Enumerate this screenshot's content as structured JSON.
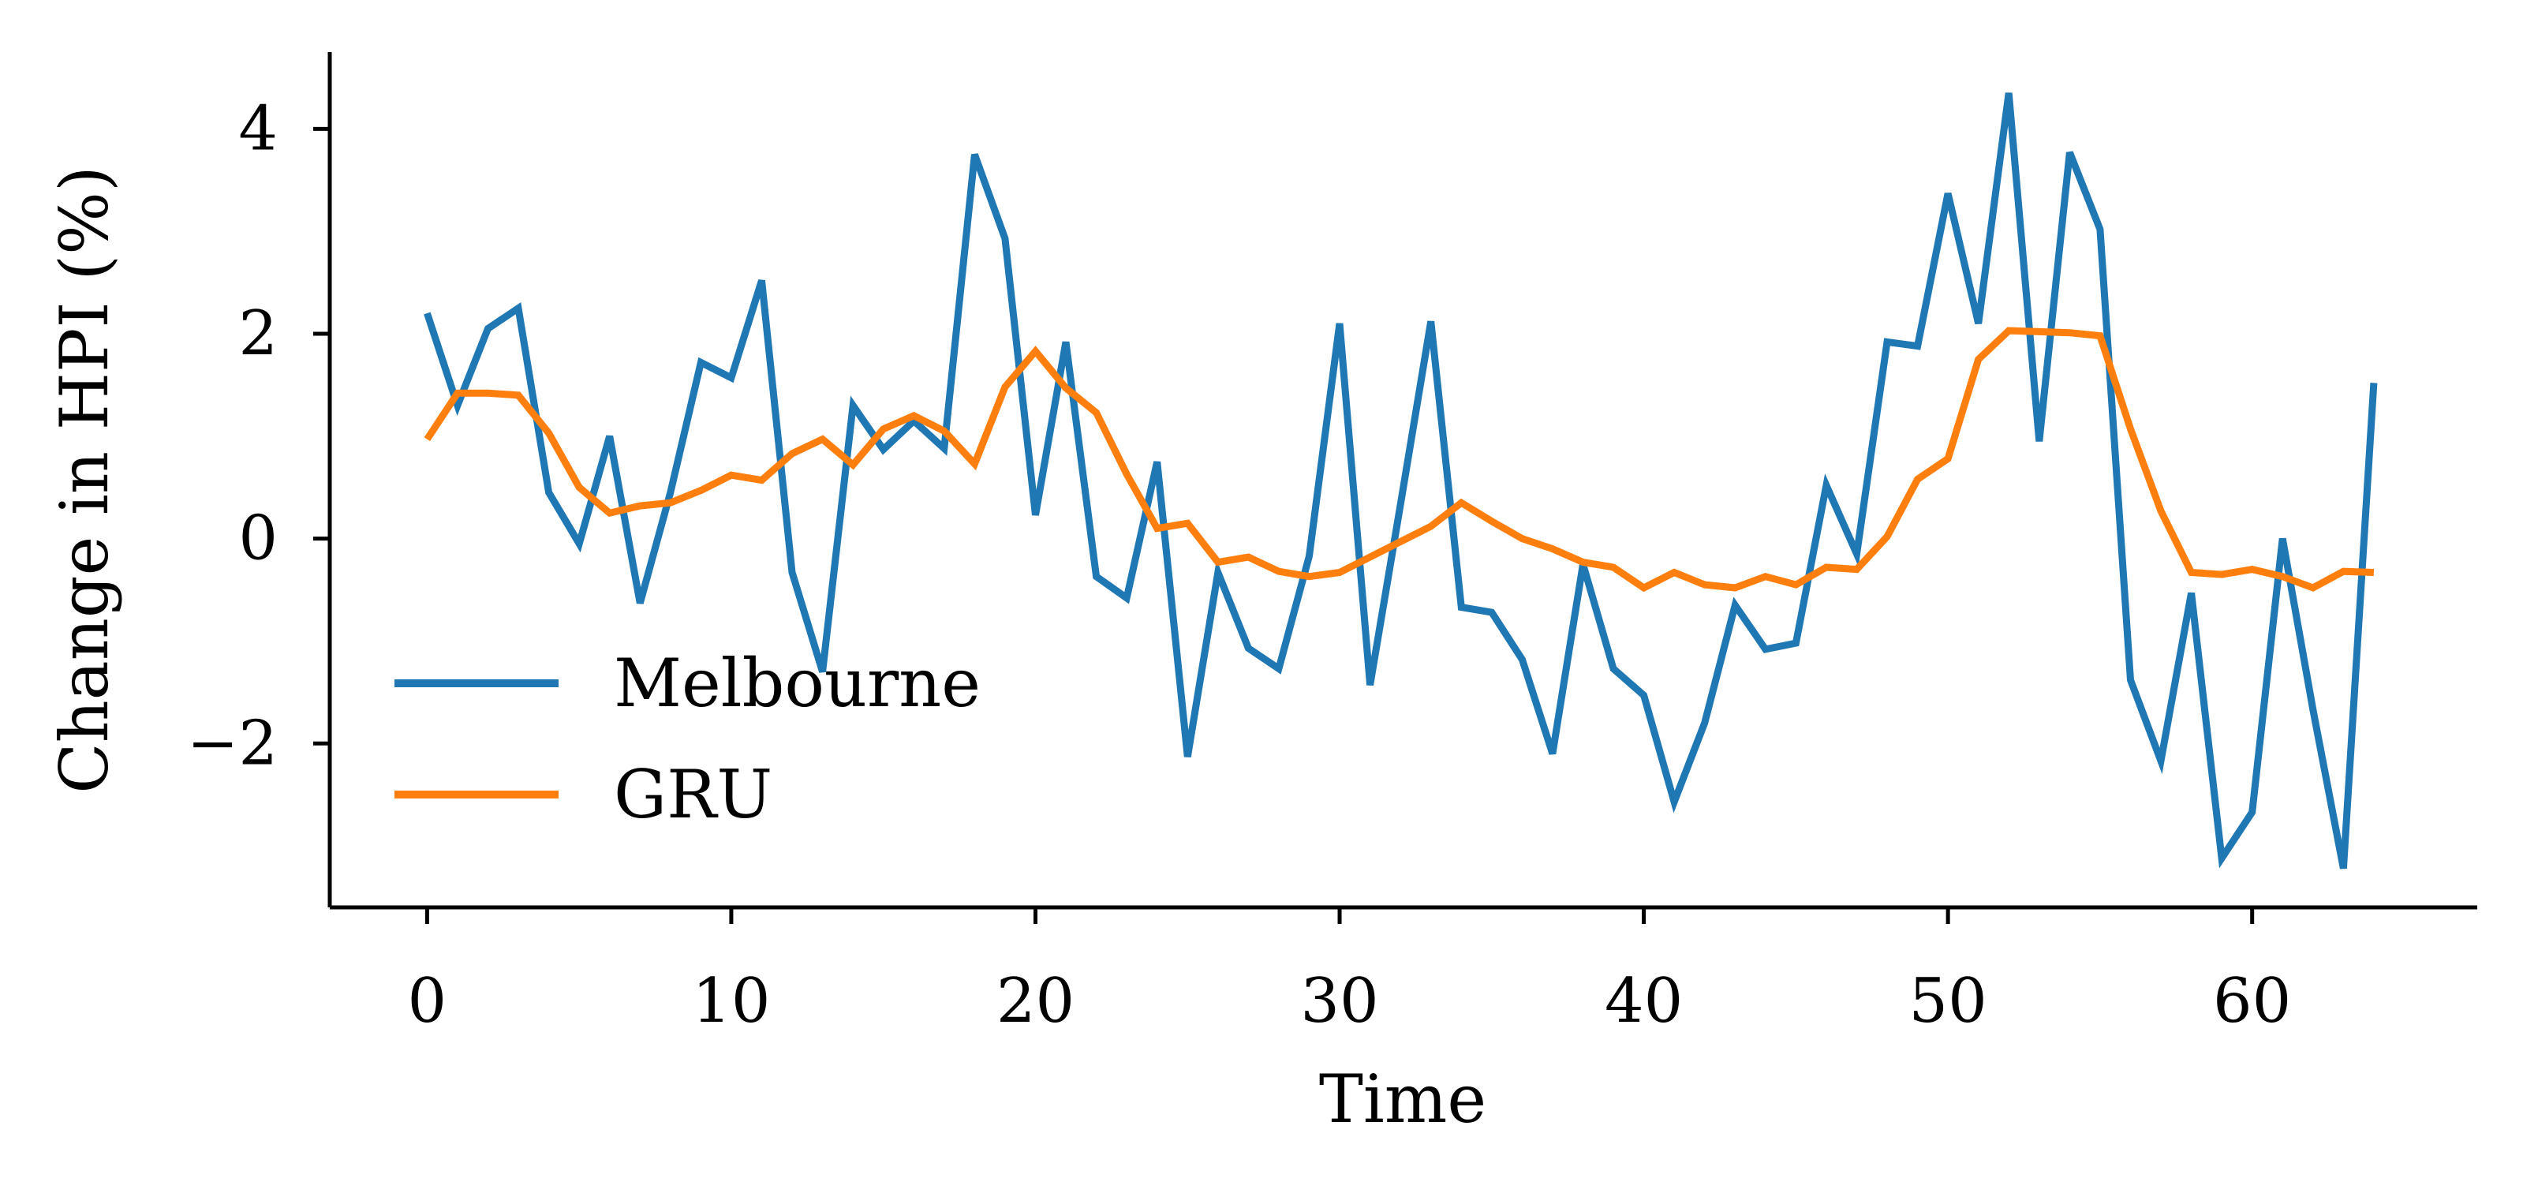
{
  "chart_data": {
    "type": "line",
    "xlabel": "Time",
    "ylabel": "Change in HPI (%)",
    "xlim": [
      -3.2,
      67.4
    ],
    "ylim": [
      -3.6,
      4.75
    ],
    "xticks": [
      0,
      10,
      20,
      30,
      40,
      50,
      60
    ],
    "yticks": [
      -2,
      0,
      2,
      4
    ],
    "grid": false,
    "legend_position": "lower-left",
    "series": [
      {
        "name": "Melbourne",
        "color": "#1f77b4",
        "x": [
          0,
          1,
          2,
          3,
          4,
          5,
          6,
          7,
          8,
          9,
          10,
          11,
          12,
          13,
          14,
          15,
          16,
          17,
          18,
          19,
          20,
          21,
          22,
          23,
          24,
          25,
          26,
          27,
          28,
          29,
          30,
          31,
          32,
          33,
          34,
          35,
          36,
          37,
          38,
          39,
          40,
          41,
          42,
          43,
          44,
          45,
          46,
          47,
          48,
          49,
          50,
          51,
          52,
          53,
          54,
          55,
          56,
          57,
          58,
          59,
          60,
          61,
          62,
          63,
          64
        ],
        "values": [
          2.2,
          1.3,
          2.05,
          2.25,
          0.45,
          -0.05,
          1.0,
          -0.63,
          0.45,
          1.72,
          1.57,
          2.52,
          -0.33,
          -1.3,
          1.3,
          0.87,
          1.15,
          0.88,
          3.75,
          2.93,
          0.23,
          1.92,
          -0.37,
          -0.58,
          0.75,
          -2.13,
          -0.33,
          -1.07,
          -1.27,
          -0.17,
          2.1,
          -1.43,
          0.33,
          2.12,
          -0.67,
          -0.72,
          -1.18,
          -2.1,
          -0.25,
          -1.27,
          -1.53,
          -2.57,
          -1.8,
          -0.65,
          -1.08,
          -1.02,
          0.52,
          -0.15,
          1.92,
          1.88,
          3.37,
          2.1,
          4.35,
          0.95,
          3.77,
          3.02,
          -1.38,
          -2.17,
          -0.53,
          -3.12,
          -2.67,
          0.0,
          -1.67,
          -3.22,
          1.52
        ]
      },
      {
        "name": "GRU",
        "color": "#ff7f0e",
        "x": [
          0,
          1,
          2,
          3,
          4,
          5,
          6,
          7,
          8,
          9,
          10,
          11,
          12,
          13,
          14,
          15,
          16,
          17,
          18,
          19,
          20,
          21,
          22,
          23,
          24,
          25,
          26,
          27,
          28,
          29,
          30,
          31,
          32,
          33,
          34,
          35,
          36,
          37,
          38,
          39,
          40,
          41,
          42,
          43,
          44,
          45,
          46,
          47,
          48,
          49,
          50,
          51,
          52,
          53,
          54,
          55,
          56,
          57,
          58,
          59,
          60,
          61,
          62,
          63,
          64
        ],
        "values": [
          0.97,
          1.42,
          1.42,
          1.4,
          1.03,
          0.5,
          0.25,
          0.32,
          0.35,
          0.47,
          0.62,
          0.57,
          0.83,
          0.97,
          0.72,
          1.07,
          1.2,
          1.05,
          0.73,
          1.48,
          1.83,
          1.47,
          1.23,
          0.63,
          0.1,
          0.15,
          -0.23,
          -0.18,
          -0.32,
          -0.37,
          -0.33,
          -0.18,
          -0.03,
          0.12,
          0.35,
          0.17,
          0.0,
          -0.1,
          -0.23,
          -0.28,
          -0.48,
          -0.33,
          -0.45,
          -0.48,
          -0.37,
          -0.45,
          -0.28,
          -0.3,
          0.02,
          0.58,
          0.78,
          1.75,
          2.03,
          2.02,
          2.01,
          1.98,
          1.07,
          0.27,
          -0.33,
          -0.35,
          -0.3,
          -0.37,
          -0.48,
          -0.32,
          -0.33
        ]
      }
    ]
  }
}
